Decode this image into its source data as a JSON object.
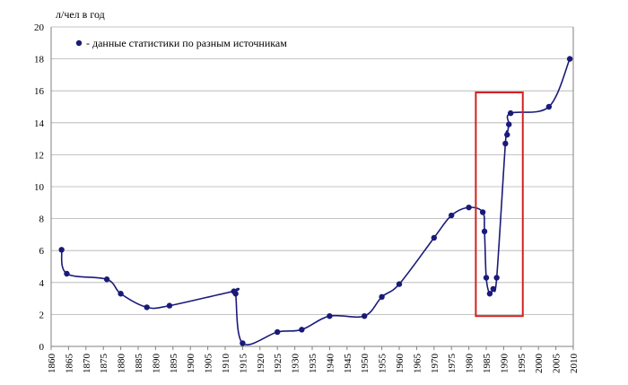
{
  "chart_data": {
    "type": "line",
    "title": "",
    "xlabel": "",
    "ylabel": "л/чел в год",
    "xlim": [
      1860,
      2010
    ],
    "ylim": [
      0,
      20
    ],
    "x_ticks": [
      1860,
      1865,
      1870,
      1875,
      1880,
      1885,
      1890,
      1895,
      1900,
      1905,
      1910,
      1915,
      1920,
      1925,
      1930,
      1935,
      1940,
      1945,
      1950,
      1955,
      1960,
      1965,
      1970,
      1975,
      1980,
      1985,
      1990,
      1995,
      2000,
      2005,
      2010
    ],
    "y_ticks": [
      0,
      2,
      4,
      6,
      8,
      10,
      12,
      14,
      16,
      18,
      20
    ],
    "grid": "horizontal",
    "legend": {
      "position": "top-left",
      "text": "- данные статистики по разным источникам"
    },
    "colors": {
      "series": "#1a1a7a",
      "grid": "#b0b0b0",
      "highlight": "#d42020"
    },
    "highlight_box": {
      "x_range": [
        1982,
        1995.5
      ],
      "y_range": [
        1.9,
        15.9
      ]
    },
    "series": [
      {
        "name": "данные статистики по разным источникам",
        "x": [
          1863,
          1864.5,
          1876,
          1880,
          1887.5,
          1894,
          1912.5,
          1913,
          1915,
          1925,
          1932,
          1940,
          1950,
          1955,
          1960,
          1970,
          1975,
          1980,
          1984,
          1984.5,
          1985,
          1986,
          1987,
          1988,
          1990.5,
          1991,
          1991.5,
          1992,
          2003,
          2009
        ],
        "y": [
          6.05,
          4.55,
          4.2,
          3.3,
          2.45,
          2.55,
          3.45,
          3.3,
          0.2,
          0.9,
          1.05,
          1.9,
          1.9,
          3.1,
          3.9,
          6.8,
          8.2,
          8.7,
          8.4,
          7.2,
          4.3,
          3.3,
          3.6,
          4.3,
          12.7,
          13.25,
          13.9,
          14.6,
          15.0,
          18.0
        ]
      }
    ]
  }
}
